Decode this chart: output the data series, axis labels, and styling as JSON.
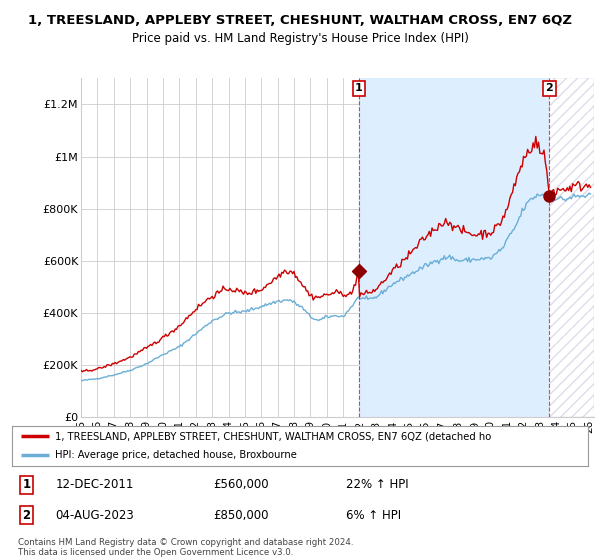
{
  "title": "1, TREESLAND, APPLEBY STREET, CHESHUNT, WALTHAM CROSS, EN7 6QZ",
  "subtitle": "Price paid vs. HM Land Registry's House Price Index (HPI)",
  "ylabel_ticks": [
    "£0",
    "£200K",
    "£400K",
    "£600K",
    "£800K",
    "£1M",
    "£1.2M"
  ],
  "ytick_values": [
    0,
    200000,
    400000,
    600000,
    800000,
    1000000,
    1200000
  ],
  "ylim": [
    0,
    1300000
  ],
  "xlim_start": 1995.0,
  "xlim_end": 2026.3,
  "hpi_color": "#6baed6",
  "hpi_fill_color": "#c6dbef",
  "price_color": "#cc0000",
  "marker1_color": "#8b0000",
  "marker2_color": "#8b0000",
  "annotation_box_color": "#cc0000",
  "grid_color": "#cccccc",
  "background_color": "#ffffff",
  "shade_between_color": "#ddeeff",
  "legend_line1": "1, TREESLAND, APPLEBY STREET, CHESHUNT, WALTHAM CROSS, EN7 6QZ (detached ho",
  "legend_line2": "HPI: Average price, detached house, Broxbourne",
  "sale1_label": "1",
  "sale1_date": "12-DEC-2011",
  "sale1_price": "£560,000",
  "sale1_hpi": "22% ↑ HPI",
  "sale1_x": 2011.95,
  "sale1_y": 560000,
  "sale2_label": "2",
  "sale2_date": "04-AUG-2023",
  "sale2_price": "£850,000",
  "sale2_hpi": "6% ↑ HPI",
  "sale2_x": 2023.58,
  "sale2_y": 850000,
  "copyright": "Contains HM Land Registry data © Crown copyright and database right 2024.\nThis data is licensed under the Open Government Licence v3.0."
}
